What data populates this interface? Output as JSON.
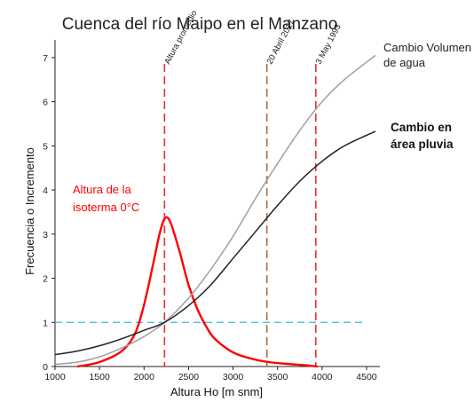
{
  "chart_data": {
    "type": "line",
    "title": "Cuenca del río Maipo en el Manzano",
    "xlabel": "Altura Ho [m snm]",
    "ylabel": "Frecuencia o Incremento",
    "xlim": [
      1000,
      4650
    ],
    "ylim": [
      0,
      7.4
    ],
    "x_ticks": [
      1000,
      1500,
      2000,
      2500,
      3000,
      3500,
      4000,
      4500
    ],
    "y_ticks": [
      0,
      1,
      2,
      3,
      4,
      5,
      6,
      7
    ],
    "grid": false,
    "series": [
      {
        "name": "Altura de la isoterma 0°C",
        "name_lines": [
          "Altura de la",
          "isoterma 0°C"
        ],
        "color": "#ff0000",
        "x": [
          1250,
          1500,
          1750,
          1900,
          2000,
          2100,
          2180,
          2240,
          2300,
          2400,
          2500,
          2600,
          2700,
          2800,
          3000,
          3200,
          3400,
          3600,
          3800,
          3950
        ],
        "y": [
          0.0,
          0.1,
          0.35,
          0.75,
          1.4,
          2.3,
          3.05,
          3.37,
          3.25,
          2.6,
          1.85,
          1.3,
          0.9,
          0.62,
          0.32,
          0.18,
          0.1,
          0.06,
          0.03,
          0.0
        ]
      },
      {
        "name": "Cambio Volumen de agua",
        "name_lines": [
          "Cambio Volumen",
          "de agua"
        ],
        "color": "#a0a0a0",
        "x": [
          1000,
          1250,
          1500,
          1750,
          2000,
          2230,
          2500,
          2750,
          3000,
          3250,
          3500,
          3750,
          4000,
          4250,
          4600
        ],
        "y": [
          0.05,
          0.1,
          0.22,
          0.42,
          0.68,
          1.0,
          1.55,
          2.2,
          2.95,
          3.8,
          4.6,
          5.35,
          6.0,
          6.5,
          7.05
        ]
      },
      {
        "name": "Cambio en área pluvia",
        "name_lines": [
          "Cambio en",
          "área pluvia"
        ],
        "color": "#222222",
        "x": [
          1000,
          1250,
          1500,
          1750,
          2000,
          2230,
          2500,
          2750,
          3000,
          3250,
          3500,
          3750,
          4000,
          4250,
          4600
        ],
        "y": [
          0.27,
          0.35,
          0.47,
          0.63,
          0.82,
          1.0,
          1.38,
          1.85,
          2.45,
          3.05,
          3.65,
          4.2,
          4.65,
          5.0,
          5.33
        ]
      }
    ],
    "reference_lines": [
      {
        "orientation": "vertical",
        "x": 2230,
        "label": "Altura promedio",
        "color": "#e83030"
      },
      {
        "orientation": "vertical",
        "x": 3380,
        "label": "20 Abril 2017",
        "color": "#b06a3a"
      },
      {
        "orientation": "vertical",
        "x": 3930,
        "label": "3 May 1993",
        "color": "#e83030"
      },
      {
        "orientation": "horizontal",
        "y": 1,
        "label": "",
        "color": "#38b8e0"
      }
    ],
    "annotations": [
      {
        "text_lines": [
          "Altura de la",
          "isoterma 0°C"
        ],
        "color": "#ff0000",
        "bold": false
      },
      {
        "text_lines": [
          "Cambio Volumen",
          "de agua"
        ],
        "color": "#222222",
        "bold": false
      },
      {
        "text_lines": [
          "Cambio en",
          "área pluvia"
        ],
        "color": "#111111",
        "bold": true
      }
    ]
  }
}
